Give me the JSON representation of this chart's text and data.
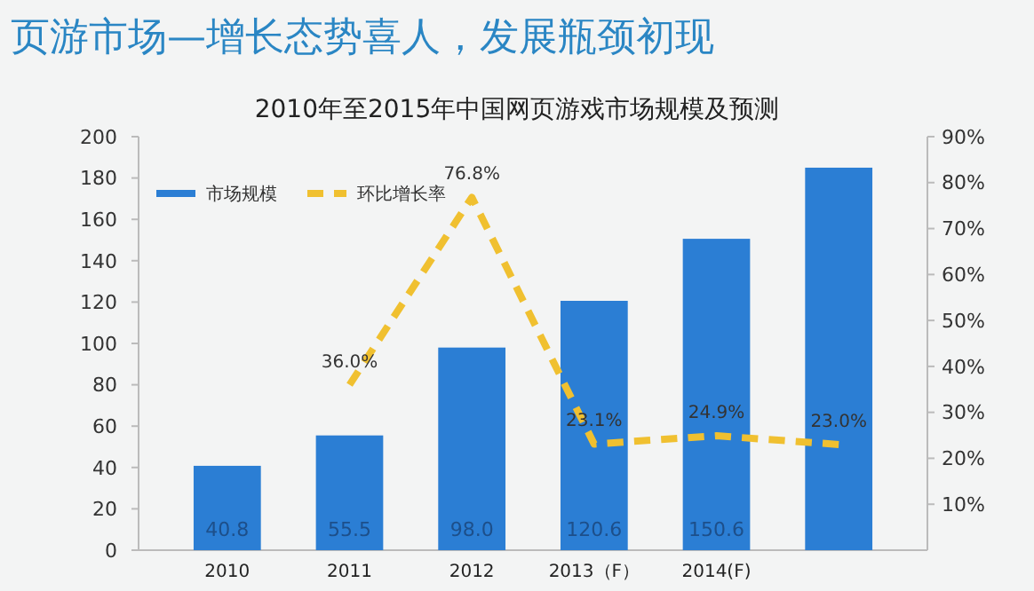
{
  "chart_data": {
    "type": "bar",
    "title": "页游市场—增长态势喜人，发展瓶颈初现",
    "subtitle": "2010年至2015年中国网页游戏市场规模及预测",
    "categories": [
      "2010",
      "2011",
      "2012",
      "2013（F）",
      "2014(F)",
      null
    ],
    "series": [
      {
        "name": "市场规模",
        "color": "#2b7ed4",
        "values": [
          40.8,
          55.5,
          98.0,
          120.6,
          150.6,
          185
        ],
        "value_labels": [
          "40.8",
          "55.5",
          "98.0",
          "120.6",
          "150.6",
          null
        ]
      },
      {
        "name": "环比增长率",
        "type": "line",
        "axis": "y2",
        "color": "#f0c030",
        "line_style": "dashed",
        "values": [
          null,
          36.0,
          76.8,
          23.1,
          24.9,
          23.0
        ],
        "value_labels": [
          null,
          "36.0%",
          "76.8%",
          "23.1%",
          "24.9%",
          "23.0%"
        ]
      }
    ],
    "ylim": [
      0,
      200
    ],
    "yticks": [
      0,
      20,
      40,
      60,
      80,
      100,
      120,
      140,
      160,
      180,
      200
    ],
    "y2lim": [
      0,
      90
    ],
    "y2ticks": [
      {
        "value": 10,
        "label": "10%"
      },
      {
        "value": 20,
        "label": "20%"
      },
      {
        "value": 30,
        "label": "30%"
      },
      {
        "value": 40,
        "label": "40%"
      },
      {
        "value": 50,
        "label": "50%"
      },
      {
        "value": 60,
        "label": "60%"
      },
      {
        "value": 70,
        "label": "70%"
      },
      {
        "value": 80,
        "label": "80%"
      },
      {
        "value": 90,
        "label": "90%"
      }
    ],
    "grid": false,
    "legend": "top left"
  }
}
